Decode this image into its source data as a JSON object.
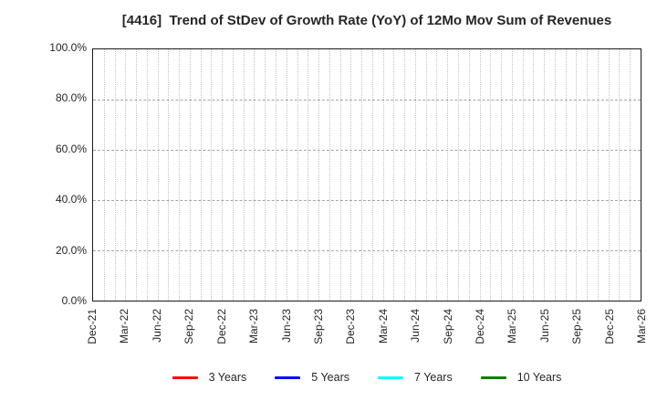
{
  "chart_data": {
    "type": "line",
    "title": "[4416]  Trend of StDev of Growth Rate (YoY) of 12Mo Mov Sum of Revenues",
    "xlabel": "",
    "ylabel": "",
    "x_tick_labels": [
      "Dec-21",
      "Mar-22",
      "Jun-22",
      "Sep-22",
      "Dec-22",
      "Mar-23",
      "Jun-23",
      "Sep-23",
      "Dec-23",
      "Mar-24",
      "Jun-24",
      "Sep-24",
      "Dec-24",
      "Mar-25",
      "Jun-25",
      "Sep-25",
      "Dec-25",
      "Mar-26"
    ],
    "months_per_tick": 3,
    "y_tick_labels": [
      "0.0%",
      "20.0%",
      "40.0%",
      "60.0%",
      "80.0%",
      "100.0%"
    ],
    "ylim": [
      0,
      100
    ],
    "grid": "on",
    "grid_style": {
      "vertical": "dotted, monthly",
      "horizontal": "dashed, every 20%"
    },
    "legend_position": "bottom-center",
    "series": [
      {
        "name": "3 Years",
        "color": "#ff0000",
        "values": []
      },
      {
        "name": "5 Years",
        "color": "#0000ff",
        "values": []
      },
      {
        "name": "7 Years",
        "color": "#00ffff",
        "values": []
      },
      {
        "name": "10 Years",
        "color": "#008000",
        "values": []
      }
    ]
  }
}
